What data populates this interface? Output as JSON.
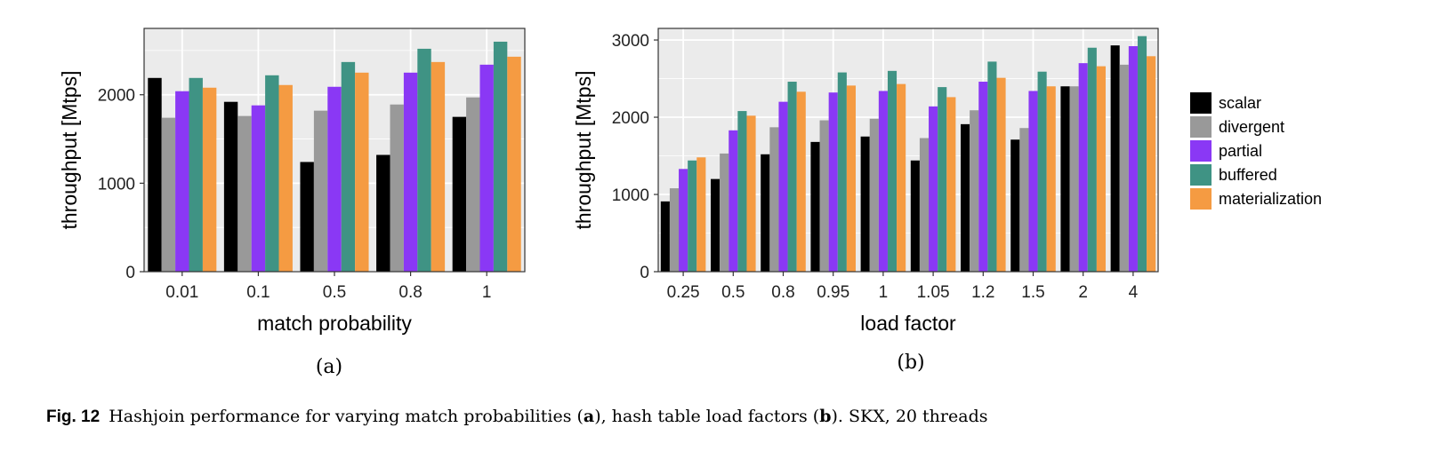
{
  "series_names": [
    "scalar",
    "divergent",
    "partial",
    "buffered",
    "materialization"
  ],
  "colors": {
    "scalar": "#000000",
    "divergent": "#999999",
    "partial": "#8a38f5",
    "buffered": "#3f9384",
    "materialization": "#f59b42",
    "panel": "#ebebeb",
    "grid": "#ffffff"
  },
  "chart_data": [
    {
      "type": "bar",
      "panel": "a",
      "categories": [
        "0.01",
        "0.1",
        "0.5",
        "0.8",
        "1"
      ],
      "series": [
        {
          "name": "scalar",
          "values": [
            2190,
            1920,
            1240,
            1320,
            1750
          ]
        },
        {
          "name": "divergent",
          "values": [
            1740,
            1760,
            1820,
            1890,
            1970
          ]
        },
        {
          "name": "partial",
          "values": [
            2040,
            1880,
            2090,
            2250,
            2340
          ]
        },
        {
          "name": "buffered",
          "values": [
            2190,
            2220,
            2370,
            2520,
            2600
          ]
        },
        {
          "name": "materialization",
          "values": [
            2080,
            2110,
            2250,
            2370,
            2430
          ]
        }
      ],
      "yticks": [
        0,
        1000,
        2000
      ],
      "ylim": [
        0,
        2750
      ],
      "xlabel": "match probability",
      "ylabel": "throughput [Mtps]",
      "grid": true,
      "legend": "none"
    },
    {
      "type": "bar",
      "panel": "b",
      "categories": [
        "0.25",
        "0.5",
        "0.8",
        "0.95",
        "1",
        "1.05",
        "1.2",
        "1.5",
        "2",
        "4"
      ],
      "series": [
        {
          "name": "scalar",
          "values": [
            910,
            1200,
            1520,
            1680,
            1750,
            1440,
            1910,
            1710,
            2400,
            2930
          ]
        },
        {
          "name": "divergent",
          "values": [
            1080,
            1530,
            1870,
            1960,
            1980,
            1730,
            2090,
            1860,
            2400,
            2680
          ]
        },
        {
          "name": "partial",
          "values": [
            1330,
            1830,
            2200,
            2320,
            2340,
            2140,
            2460,
            2340,
            2700,
            2920
          ]
        },
        {
          "name": "buffered",
          "values": [
            1440,
            2080,
            2460,
            2580,
            2600,
            2390,
            2720,
            2590,
            2900,
            3050
          ]
        },
        {
          "name": "materialization",
          "values": [
            1480,
            2020,
            2330,
            2410,
            2430,
            2260,
            2510,
            2400,
            2660,
            2790
          ]
        }
      ],
      "yticks": [
        0,
        1000,
        2000,
        3000
      ],
      "ylim": [
        0,
        3150
      ],
      "xlabel": "load factor",
      "ylabel": "throughput [Mtps]",
      "grid": true,
      "legend": "right"
    }
  ],
  "sublabels": [
    "(a)",
    "(b)"
  ],
  "caption": {
    "fig_label": "Fig. 12",
    "text_1": "Hashjoin performance for varying match probabilities (",
    "bold_a": "a",
    "text_2": "), hash table load factors (",
    "bold_b": "b",
    "text_3": "). SKX, 20 threads"
  }
}
